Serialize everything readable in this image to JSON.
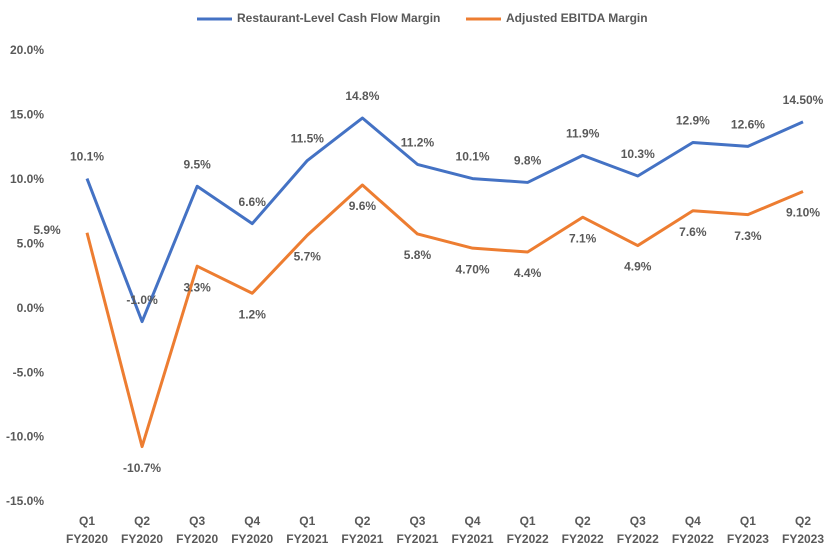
{
  "chart_data": {
    "type": "line",
    "categories": [
      [
        "Q1",
        "FY2020"
      ],
      [
        "Q2",
        "FY2020"
      ],
      [
        "Q3",
        "FY2020"
      ],
      [
        "Q4",
        "FY2020"
      ],
      [
        "Q1",
        "FY2021"
      ],
      [
        "Q2",
        "FY2021"
      ],
      [
        "Q3",
        "FY2021"
      ],
      [
        "Q4",
        "FY2021"
      ],
      [
        "Q1",
        "FY2022"
      ],
      [
        "Q2",
        "FY2022"
      ],
      [
        "Q3",
        "FY2022"
      ],
      [
        "Q4",
        "FY2022"
      ],
      [
        "Q1",
        "FY2023"
      ],
      [
        "Q2",
        "FY2023"
      ]
    ],
    "series": [
      {
        "name": "Restaurant-Level Cash Flow Margin",
        "color": "#4472c4",
        "values": [
          10.1,
          -1.0,
          9.5,
          6.6,
          11.5,
          14.8,
          11.2,
          10.1,
          9.8,
          11.9,
          10.3,
          12.9,
          12.6,
          14.5
        ],
        "value_labels": [
          "10.1%",
          "-1.0%",
          "9.5%",
          "6.6%",
          "11.5%",
          "14.8%",
          "11.2%",
          "10.1%",
          "9.8%",
          "11.9%",
          "10.3%",
          "12.9%",
          "12.6%",
          "14.50%"
        ]
      },
      {
        "name": "Adjusted EBITDA Margin",
        "color": "#ed7d31",
        "values": [
          5.9,
          -10.7,
          3.3,
          1.2,
          5.7,
          9.6,
          5.8,
          4.7,
          4.4,
          7.1,
          4.9,
          7.6,
          7.3,
          9.1
        ],
        "value_labels": [
          "5.9%",
          "-10.7%",
          "3.3%",
          "1.2%",
          "5.7%",
          "9.6%",
          "5.8%",
          "4.70%",
          "4.4%",
          "7.1%",
          "4.9%",
          "7.6%",
          "7.3%",
          "9.10%"
        ]
      }
    ],
    "ylim": [
      -15,
      20
    ],
    "yticks": [
      {
        "value": -15,
        "label": "-15.0%"
      },
      {
        "value": -10,
        "label": "-10.0%"
      },
      {
        "value": -5,
        "label": "-5.0%"
      },
      {
        "value": 0,
        "label": "0.0%"
      },
      {
        "value": 5,
        "label": "5.0%"
      },
      {
        "value": 10,
        "label": "10.0%"
      },
      {
        "value": 15,
        "label": "15.0%"
      },
      {
        "value": 20,
        "label": "20.0%"
      }
    ],
    "legend": "top"
  }
}
